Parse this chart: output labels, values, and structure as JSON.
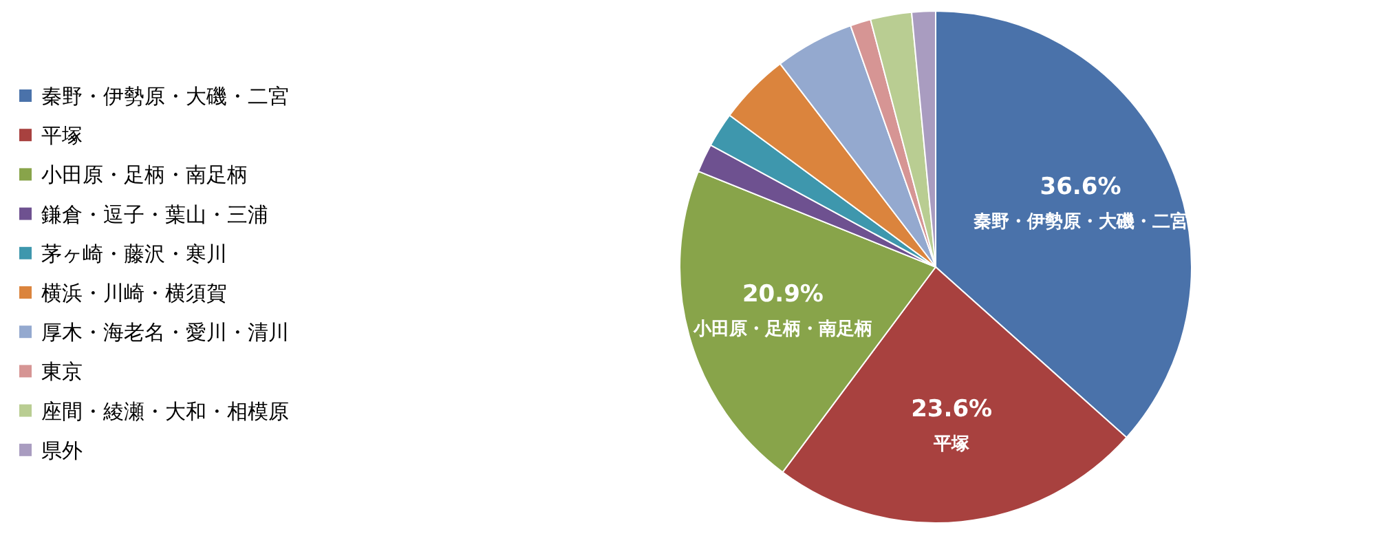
{
  "chart_data": {
    "type": "pie",
    "legend": "left",
    "categories": [
      "秦野・伊勢原・大磯・二宮",
      "平塚",
      "小田原・足柄・南足柄",
      "鎌倉・逗子・葉山・三浦",
      "茅ヶ崎・藤沢・寒川",
      "横浜・川崎・横須賀",
      "厚木・海老名・愛川・清川",
      "東京",
      "座間・綾瀬・大和・相模原",
      "県外"
    ],
    "values": [
      36.6,
      23.6,
      20.9,
      1.8,
      2.2,
      4.5,
      5.0,
      1.3,
      2.6,
      1.5
    ],
    "colors": [
      "#4a72aa",
      "#a8413f",
      "#88a44a",
      "#6e5190",
      "#3e97ad",
      "#db843d",
      "#94a9cf",
      "#d69594",
      "#b9cd92",
      "#a99cc0"
    ],
    "value_labels": [
      "36.6%",
      "23.6%",
      "20.9%",
      null,
      null,
      null,
      null,
      null,
      null,
      null
    ]
  }
}
